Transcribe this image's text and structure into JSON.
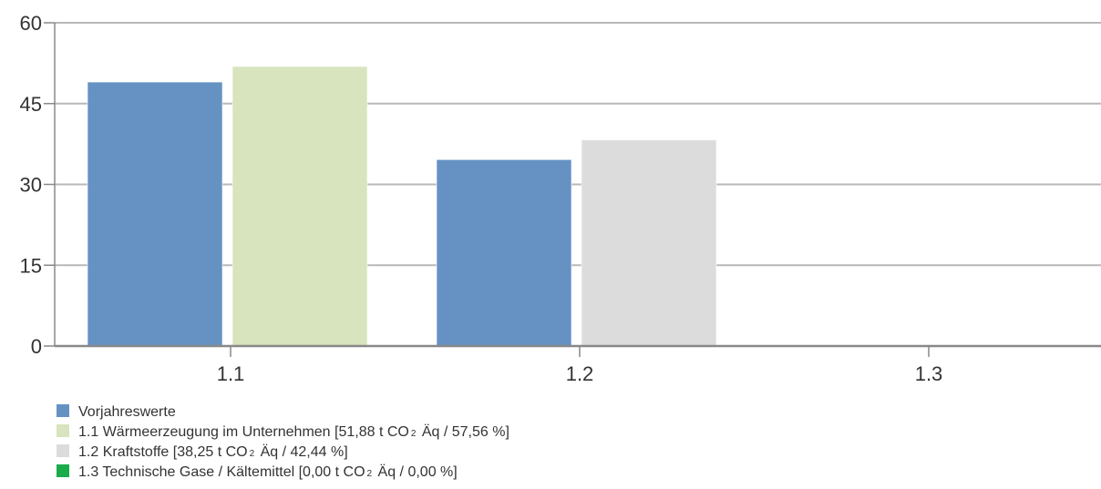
{
  "chart_data": {
    "type": "bar",
    "categories": [
      "1.1",
      "1.2",
      "1.3"
    ],
    "yticks": [
      "0",
      "15",
      "30",
      "45",
      "60"
    ],
    "ylim": [
      0,
      60
    ],
    "grid": true,
    "legend_position": "bottom-left",
    "bars": [
      {
        "category": "1.1",
        "series": "Vorjahreswerte",
        "value": 49.0
      },
      {
        "category": "1.1",
        "series": "1.1",
        "value": 51.88
      },
      {
        "category": "1.2",
        "series": "Vorjahreswerte",
        "value": 34.6
      },
      {
        "category": "1.2",
        "series": "1.2",
        "value": 38.25
      },
      {
        "category": "1.3",
        "series": "1.3",
        "value": 0.0
      }
    ],
    "series": [
      {
        "id": "Vorjahreswerte",
        "color": "#6592c3",
        "legend": {
          "pre": "Vorjahreswerte",
          "sub": "",
          "post": ""
        }
      },
      {
        "id": "1.1",
        "color": "#d7e4bd",
        "legend": {
          "pre": "1.1 Wärmeerzeugung im Unternehmen [51,88 t CO",
          "sub": "2",
          "post": " Äq / 57,56 %]"
        }
      },
      {
        "id": "1.2",
        "color": "#dcdcdc",
        "legend": {
          "pre": "1.2 Kraftstoffe [38,25 t CO",
          "sub": "2",
          "post": " Äq / 42,44 %]"
        }
      },
      {
        "id": "1.3",
        "color": "#1aab4a",
        "legend": {
          "pre": "1.3 Technische Gase / Kältemittel [0,00 t CO",
          "sub": "2",
          "post": " Äq / 0,00 %]"
        }
      }
    ]
  }
}
